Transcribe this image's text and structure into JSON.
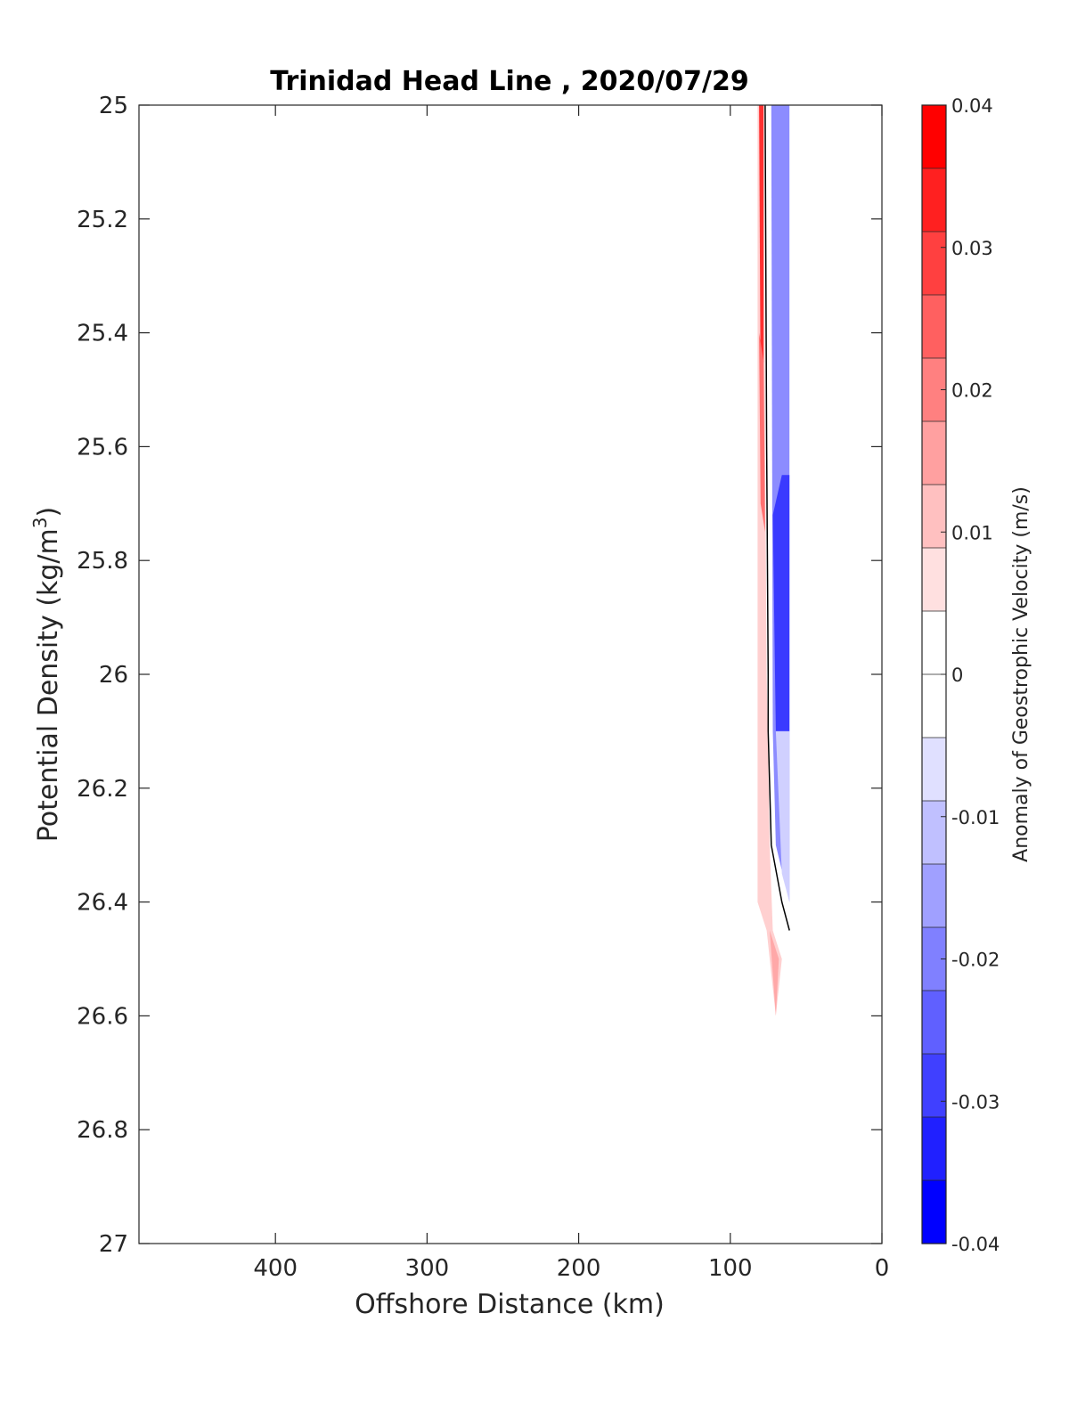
{
  "chart_data": {
    "type": "contour",
    "title": "Trinidad Head Line , 2020/07/29",
    "xlabel": "Offshore Distance (km)",
    "ylabel": "Potential Density (kg/m³)",
    "ylabel_base": "Potential Density (kg/m",
    "ylabel_sup": "3",
    "ylabel_close": ")",
    "xlim": [
      490,
      0
    ],
    "ylim": [
      25,
      27
    ],
    "x_reversed": true,
    "y_reversed": true,
    "xticks": [
      400,
      300,
      200,
      100,
      0
    ],
    "yticks": [
      25,
      25.2,
      25.4,
      25.6,
      25.8,
      26,
      26.2,
      26.4,
      26.6,
      26.8,
      27
    ],
    "colorbar": {
      "label": "Anomaly of Geostrophic Velocity (m/s)",
      "range": [
        -0.04,
        0.04
      ],
      "levels": 16,
      "ticks": [
        0.04,
        0.03,
        0.02,
        0.01,
        0,
        -0.01,
        -0.02,
        -0.03,
        -0.04
      ],
      "tick_labels": [
        "0.04",
        "0.03",
        "0.02",
        "0.01",
        "0",
        "-0.01",
        "-0.02",
        "-0.03",
        "-0.04"
      ],
      "colors_top_to_bottom": [
        "#ff0000",
        "#ff2020",
        "#ff4040",
        "#ff6060",
        "#ff8080",
        "#ffa0a0",
        "#ffc0c0",
        "#ffe0e0",
        "#ffffff",
        "#ffffff",
        "#e0e0ff",
        "#c0c0ff",
        "#a0a0ff",
        "#8080ff",
        "#6060ff",
        "#4040ff",
        "#2020ff",
        "#0000ff"
      ]
    },
    "regions": [
      {
        "name": "positive-anomaly-band",
        "value": 0.01,
        "color": "#ffd0d0",
        "points": [
          [
            82,
            25
          ],
          [
            78,
            25
          ],
          [
            77,
            25.6
          ],
          [
            76,
            26
          ],
          [
            74,
            26.3
          ],
          [
            72,
            26.45
          ],
          [
            66,
            26.5
          ],
          [
            70,
            26.6
          ],
          [
            76,
            26.45
          ],
          [
            82,
            26.4
          ]
        ]
      },
      {
        "name": "strong-positive-core",
        "value": 0.035,
        "color": "#ff3030",
        "points": [
          [
            81,
            25
          ],
          [
            78,
            25
          ],
          [
            78,
            25.45
          ],
          [
            80,
            25.5
          ]
        ]
      },
      {
        "name": "positive-core",
        "value": 0.025,
        "color": "#ff7070",
        "points": [
          [
            81,
            25.4
          ],
          [
            78,
            25.45
          ],
          [
            77,
            25.75
          ],
          [
            80,
            25.7
          ]
        ]
      },
      {
        "name": "positive-deep-lobe",
        "value": 0.015,
        "color": "#ffa8a8",
        "points": [
          [
            74,
            26.45
          ],
          [
            68,
            26.5
          ],
          [
            70,
            26.6
          ]
        ]
      },
      {
        "name": "negative-anomaly-band",
        "value": -0.02,
        "color": "#8c8cff",
        "points": [
          [
            73,
            25
          ],
          [
            61,
            25
          ],
          [
            61,
            26.4
          ],
          [
            70,
            26.3
          ],
          [
            72,
            26.1
          ]
        ]
      },
      {
        "name": "negative-core",
        "value": -0.032,
        "color": "#3a3aff",
        "points": [
          [
            72,
            25.72
          ],
          [
            66,
            25.65
          ],
          [
            61,
            25.65
          ],
          [
            61,
            26.1
          ],
          [
            70,
            26.1
          ]
        ]
      },
      {
        "name": "negative-weak-edge",
        "value": -0.01,
        "color": "#d0d0ff",
        "points": [
          [
            70,
            26.1
          ],
          [
            61,
            26.1
          ],
          [
            61,
            26.4
          ],
          [
            66,
            26.35
          ]
        ]
      }
    ],
    "zero_contour": {
      "value": 0,
      "color": "#000000",
      "points": [
        [
          77,
          25
        ],
        [
          76,
          25.6
        ],
        [
          75,
          26
        ],
        [
          75,
          26.1
        ],
        [
          73,
          26.3
        ],
        [
          66,
          26.4
        ],
        [
          61,
          26.45
        ]
      ]
    }
  }
}
